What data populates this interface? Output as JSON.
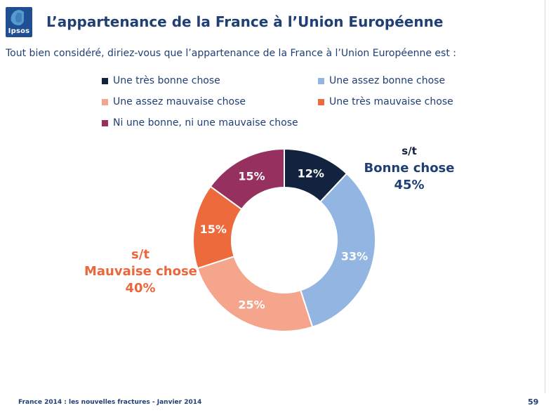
{
  "header": {
    "logo_text": "Ipsos",
    "title": "L’appartenance de la France à l’Union Européenne"
  },
  "question": "Tout bien considéré, diriez-vous que l’appartenance de la France à l’Union Européenne est  :",
  "colors": {
    "tres_bonne": "#13233f",
    "assez_bonne": "#93b5e1",
    "assez_mauvaise": "#f4a58b",
    "tres_mauvaise": "#ec6a3c",
    "ni_ni": "#96305e",
    "text_dark": "#1f3f75",
    "text_orange": "#e8683d"
  },
  "chart_data": {
    "type": "pie",
    "subtype": "donut",
    "title": "L’appartenance de la France à l’Union Européenne",
    "legend_position": "top",
    "series": [
      {
        "name": "Une très bonne chose",
        "value": 12,
        "label": "12%"
      },
      {
        "name": "Une assez bonne chose",
        "value": 33,
        "label": "33%"
      },
      {
        "name": "Une assez mauvaise chose",
        "value": 25,
        "label": "25%"
      },
      {
        "name": "Une très mauvaise chose",
        "value": 15,
        "label": "15%"
      },
      {
        "name": "Ni une bonne, ni une mauvaise chose",
        "value": 15,
        "label": "15%"
      }
    ],
    "annotations": {
      "bonne": {
        "prefix": "s/t",
        "label": "Bonne chose",
        "value": "45%"
      },
      "mauvaise": {
        "prefix": "s/t",
        "label": "Mauvaise chose",
        "value": "40%"
      }
    }
  },
  "footer": {
    "source": "France 2014 : les nouvelles fractures - Janvier 2014",
    "page_number": "59"
  }
}
